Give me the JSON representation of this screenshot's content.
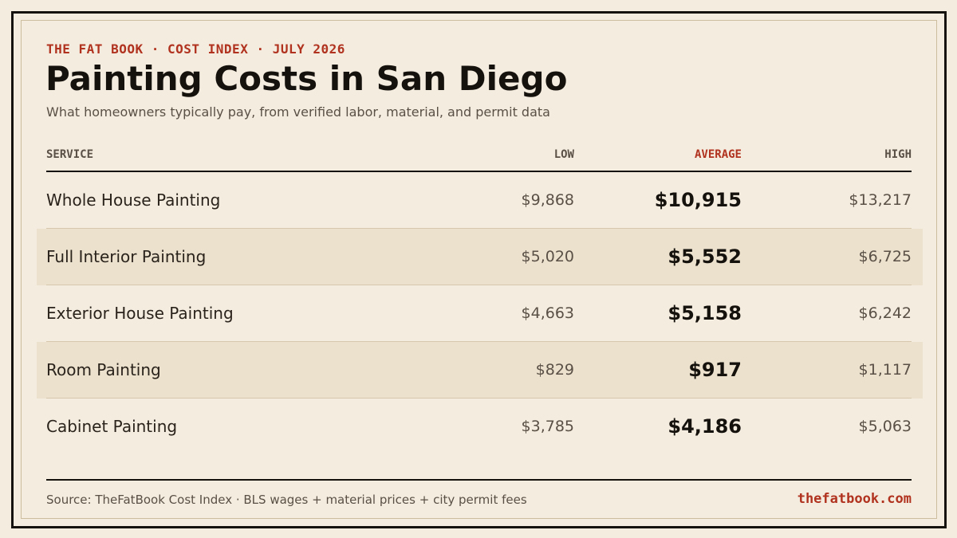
{
  "eyebrow": "THE FAT BOOK · COST INDEX · JULY 2026",
  "title": "Painting Costs in San Diego",
  "subtitle": "What homeowners typically pay, from verified labor, material, and permit data",
  "colors": {
    "accent": "#b0321f",
    "background": "#f4ecde",
    "shaded_row": "#ece1cd",
    "ink": "#15110d"
  },
  "chart_data": {
    "type": "table",
    "columns": [
      "SERVICE",
      "LOW",
      "AVERAGE",
      "HIGH"
    ],
    "rows": [
      {
        "service": "Whole House Painting",
        "low": "$9,868",
        "average": "$10,915",
        "high": "$13,217"
      },
      {
        "service": "Full Interior Painting",
        "low": "$5,020",
        "average": "$5,552",
        "high": "$6,725"
      },
      {
        "service": "Exterior House Painting",
        "low": "$4,663",
        "average": "$5,158",
        "high": "$6,242"
      },
      {
        "service": "Room Painting",
        "low": "$829",
        "average": "$917",
        "high": "$1,117"
      },
      {
        "service": "Cabinet Painting",
        "low": "$3,785",
        "average": "$4,186",
        "high": "$5,063"
      }
    ]
  },
  "footer": {
    "source": "Source: TheFatBook Cost Index · BLS wages + material prices + city permit fees",
    "site": "thefatbook.com"
  }
}
